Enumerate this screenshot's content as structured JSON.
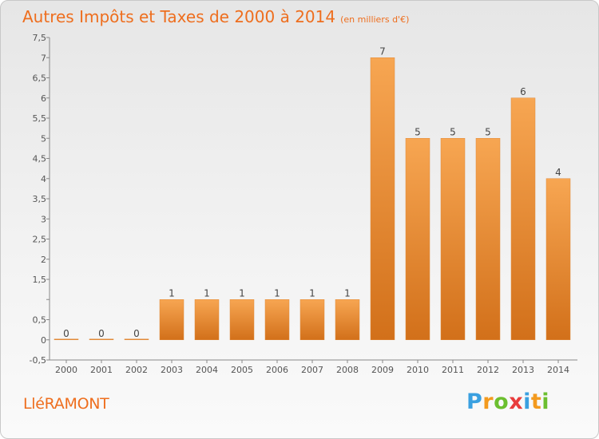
{
  "title": {
    "main": "Autres Impôts et Taxes de 2000 à 2014",
    "unit": "(en milliers d'€)"
  },
  "commune": "LléRAMONT",
  "logo": {
    "text": "Proxiti",
    "letters": [
      "P",
      "r",
      "o",
      "x",
      "i",
      "t",
      "i"
    ]
  },
  "colors": {
    "bar_top": "#f7a652",
    "bar_bottom": "#d2701a",
    "title": "#ee6e1e"
  },
  "chart_data": {
    "type": "bar",
    "title": "Autres Impôts et Taxes de 2000 à 2014",
    "unit": "(en milliers d'€)",
    "categories": [
      "2000",
      "2001",
      "2002",
      "2003",
      "2004",
      "2005",
      "2006",
      "2007",
      "2008",
      "2009",
      "2010",
      "2011",
      "2012",
      "2013",
      "2014"
    ],
    "values": [
      0,
      0,
      0,
      1,
      1,
      1,
      1,
      1,
      1,
      7,
      5,
      5,
      5,
      6,
      4
    ],
    "data_labels": [
      "0",
      "0",
      "0",
      "1",
      "1",
      "1",
      "1",
      "1",
      "1",
      "7",
      "5",
      "5",
      "5",
      "6",
      "4"
    ],
    "yticks": [
      -0.5,
      0,
      0.5,
      1,
      1.5,
      2,
      2.5,
      3,
      3.5,
      4,
      4.5,
      5,
      5.5,
      6,
      6.5,
      7,
      7.5
    ],
    "ytick_labels": [
      "-0,5",
      "0",
      "0,5",
      "",
      "1,5",
      "2",
      "2,5",
      "3",
      "3,5",
      "4",
      "4,5",
      "5",
      "5,5",
      "6",
      "6,5",
      "7",
      "7,5"
    ],
    "ylim": [
      -0.5,
      7.5
    ],
    "xlabel": "",
    "ylabel": "",
    "grid": false,
    "legend": "none"
  }
}
